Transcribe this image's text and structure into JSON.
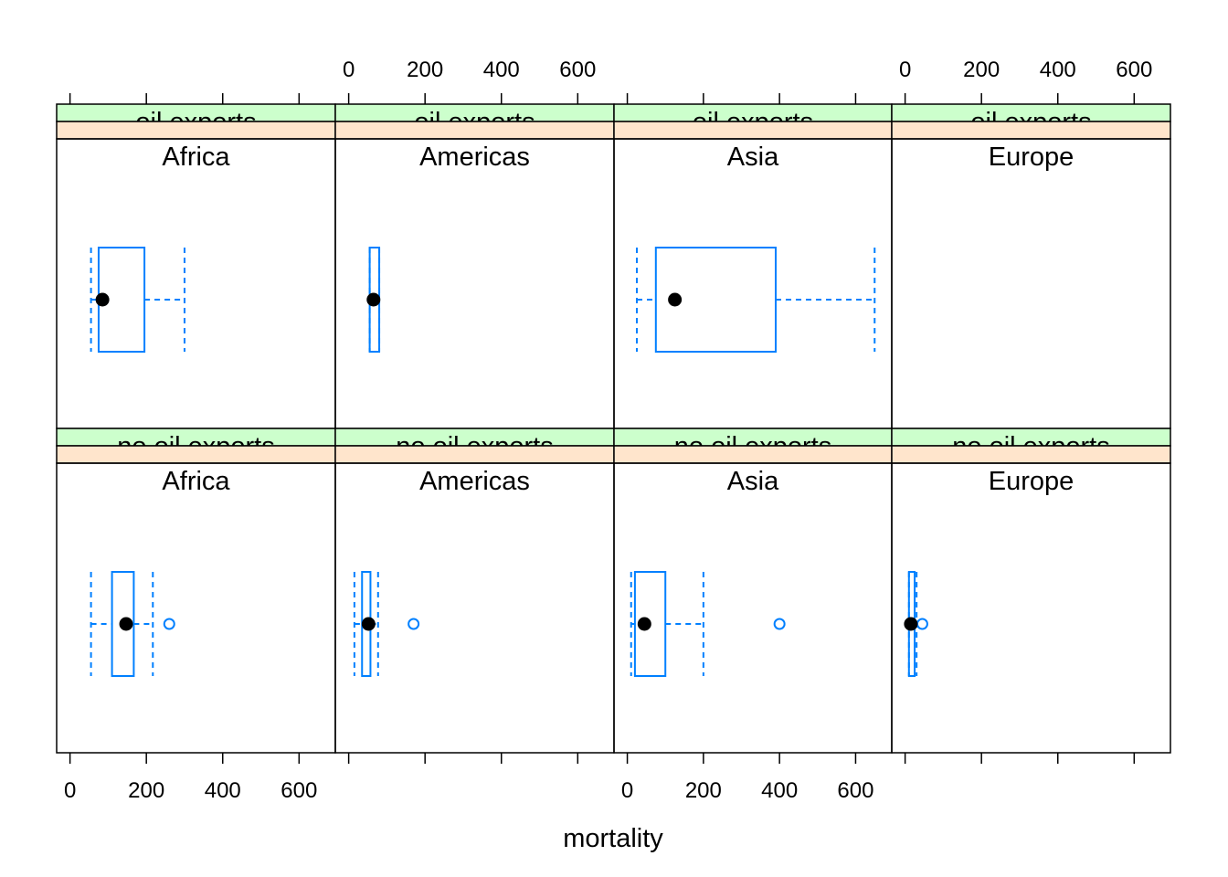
{
  "chart_data": {
    "type": "box",
    "xlabel": "mortality",
    "xlim": [
      -35,
      695
    ],
    "x_ticks": [
      0,
      200,
      400,
      600
    ],
    "grid": false,
    "column_facet": [
      "Africa",
      "Americas",
      "Asia",
      "Europe"
    ],
    "row_facet": [
      "no oil exports",
      "oil exports"
    ],
    "colors": {
      "box": "#0080ff",
      "median_dot": "#000000",
      "strip_oil": "#ccffcc",
      "strip_region": "#ffe5cc",
      "frame": "#000000"
    },
    "panels": [
      {
        "oil": "oil exports",
        "region": "Africa",
        "whisker_low": 55,
        "q1": 75,
        "median": 85,
        "q3": 195,
        "whisker_high": 300,
        "outliers": []
      },
      {
        "oil": "oil exports",
        "region": "Americas",
        "whisker_low": 55,
        "q1": 55,
        "median": 65,
        "q3": 80,
        "whisker_high": 80,
        "outliers": []
      },
      {
        "oil": "oil exports",
        "region": "Asia",
        "whisker_low": 25,
        "q1": 75,
        "median": 125,
        "q3": 390,
        "whisker_high": 650,
        "outliers": []
      },
      {
        "oil": "oil exports",
        "region": "Europe",
        "whisker_low": null,
        "q1": null,
        "median": null,
        "q3": null,
        "whisker_high": null,
        "outliers": []
      },
      {
        "oil": "no oil exports",
        "region": "Africa",
        "whisker_low": 55,
        "q1": 110,
        "median": 147,
        "q3": 167,
        "whisker_high": 217,
        "outliers": [
          260
        ]
      },
      {
        "oil": "no oil exports",
        "region": "Americas",
        "whisker_low": 15,
        "q1": 35,
        "median": 52,
        "q3": 57,
        "whisker_high": 77,
        "outliers": [
          170
        ]
      },
      {
        "oil": "no oil exports",
        "region": "Asia",
        "whisker_low": 10,
        "q1": 20,
        "median": 45,
        "q3": 100,
        "whisker_high": 200,
        "outliers": [
          400
        ]
      },
      {
        "oil": "no oil exports",
        "region": "Europe",
        "whisker_low": 10,
        "q1": 10,
        "median": 15,
        "q3": 25,
        "whisker_high": 30,
        "outliers": [
          45
        ]
      }
    ]
  }
}
